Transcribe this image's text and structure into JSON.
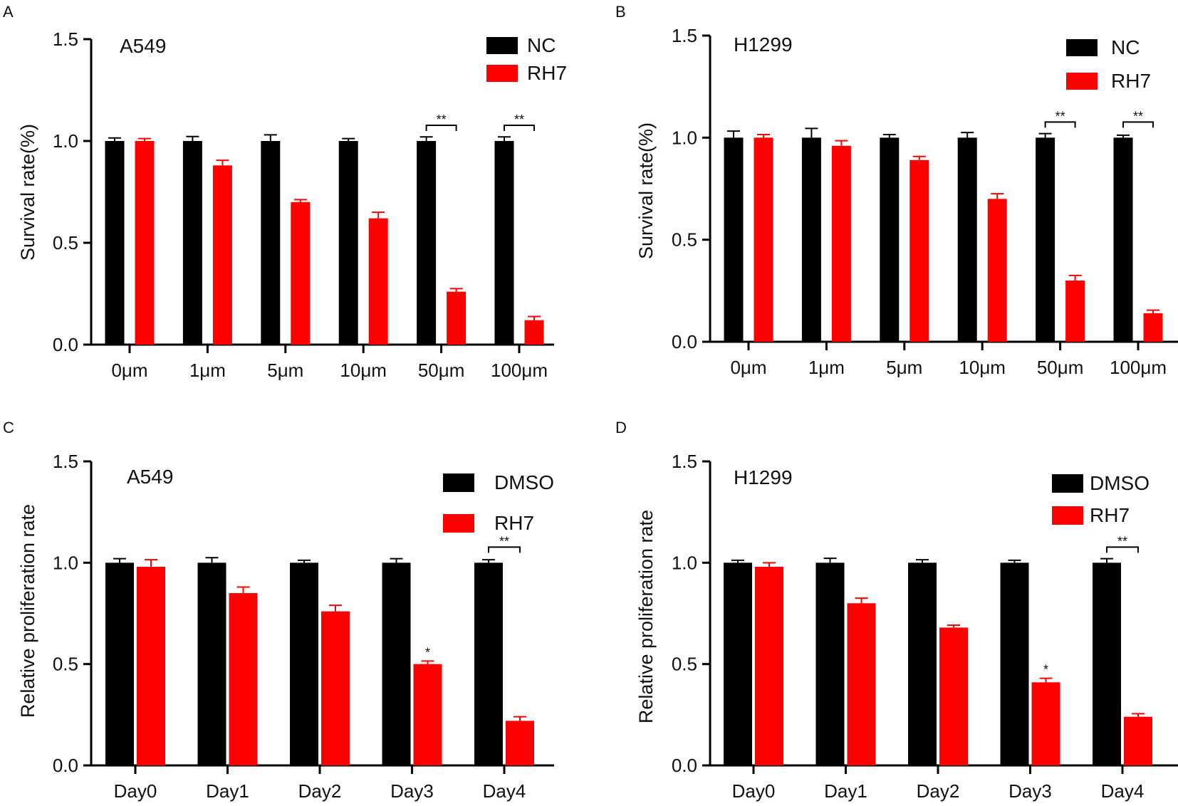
{
  "chart_data": [
    {
      "panel": "A",
      "type": "bar",
      "title": "A549",
      "ylabel": "Survival rate(%)",
      "xlabel": "",
      "ylim": [
        0,
        1.5
      ],
      "yticks": [
        "0.0",
        "0.5",
        "1.0",
        "1.5"
      ],
      "categories": [
        "0μm",
        "1μm",
        "5μm",
        "10μm",
        "50μm",
        "100μm"
      ],
      "series": [
        {
          "name": "NC",
          "color": "#000000",
          "values": [
            1.0,
            1.0,
            1.0,
            1.0,
            1.0,
            1.0
          ],
          "errors": [
            0.015,
            0.022,
            0.03,
            0.012,
            0.02,
            0.02
          ]
        },
        {
          "name": "RH7",
          "color": "#ff0000",
          "values": [
            1.0,
            0.88,
            0.7,
            0.62,
            0.26,
            0.12
          ],
          "errors": [
            0.012,
            0.025,
            0.012,
            0.03,
            0.015,
            0.018
          ]
        }
      ],
      "significance": [
        {
          "category_index": 4,
          "label": "**"
        },
        {
          "category_index": 5,
          "label": "**"
        }
      ]
    },
    {
      "panel": "B",
      "type": "bar",
      "title": "H1299",
      "ylabel": "Survival rate(%)",
      "xlabel": "",
      "ylim": [
        0,
        1.5
      ],
      "yticks": [
        "0.0",
        "0.5",
        "1.0",
        "1.5"
      ],
      "categories": [
        "0μm",
        "1μm",
        "5μm",
        "10μm",
        "50μm",
        "100μm"
      ],
      "series": [
        {
          "name": "NC",
          "color": "#000000",
          "values": [
            1.0,
            1.0,
            1.0,
            1.0,
            1.0,
            1.0
          ],
          "errors": [
            0.032,
            0.045,
            0.015,
            0.025,
            0.02,
            0.012
          ]
        },
        {
          "name": "RH7",
          "color": "#ff0000",
          "values": [
            1.0,
            0.96,
            0.89,
            0.7,
            0.3,
            0.14
          ],
          "errors": [
            0.015,
            0.025,
            0.018,
            0.025,
            0.025,
            0.015
          ]
        }
      ],
      "significance": [
        {
          "category_index": 4,
          "label": "**"
        },
        {
          "category_index": 5,
          "label": "**"
        }
      ]
    },
    {
      "panel": "C",
      "type": "bar",
      "title": "A549",
      "ylabel": "Relative proliferation rate",
      "xlabel": "",
      "ylim": [
        0,
        1.5
      ],
      "yticks": [
        "0.0",
        "0.5",
        "1.0",
        "1.5"
      ],
      "categories": [
        "Day0",
        "Day1",
        "Day2",
        "Day3",
        "Day4"
      ],
      "series": [
        {
          "name": "DMSO",
          "color": "#000000",
          "values": [
            1.0,
            1.0,
            1.0,
            1.0,
            1.0
          ],
          "errors": [
            0.02,
            0.025,
            0.012,
            0.02,
            0.015
          ]
        },
        {
          "name": "RH7",
          "color": "#ff0000",
          "values": [
            0.98,
            0.85,
            0.76,
            0.5,
            0.22
          ],
          "errors": [
            0.035,
            0.03,
            0.03,
            0.015,
            0.02
          ]
        }
      ],
      "significance": [
        {
          "category_index": 3,
          "label": "*",
          "type": "star"
        },
        {
          "category_index": 4,
          "label": "**"
        }
      ]
    },
    {
      "panel": "D",
      "type": "bar",
      "title": "H1299",
      "ylabel": "Relative proliferation rate",
      "xlabel": "",
      "ylim": [
        0,
        1.5
      ],
      "yticks": [
        "0.0",
        "0.5",
        "1.0",
        "1.5"
      ],
      "categories": [
        "Day0",
        "Day1",
        "Day2",
        "Day3",
        "Day4"
      ],
      "series": [
        {
          "name": "DMSO",
          "color": "#000000",
          "values": [
            1.0,
            1.0,
            1.0,
            1.0,
            1.0
          ],
          "errors": [
            0.012,
            0.022,
            0.015,
            0.012,
            0.02
          ]
        },
        {
          "name": "RH7",
          "color": "#ff0000",
          "values": [
            0.98,
            0.8,
            0.68,
            0.41,
            0.24
          ],
          "errors": [
            0.02,
            0.025,
            0.012,
            0.02,
            0.015
          ]
        }
      ],
      "significance": [
        {
          "category_index": 3,
          "label": "*",
          "type": "star"
        },
        {
          "category_index": 4,
          "label": "**"
        }
      ]
    }
  ]
}
